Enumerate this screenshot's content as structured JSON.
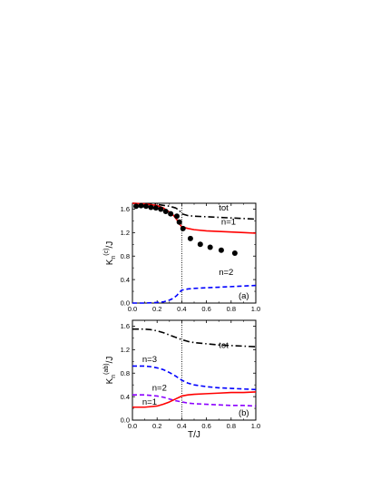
{
  "colors": {
    "tot": "#000000",
    "n1": "#ff0000",
    "n2a": "#0000ff",
    "n3": "#0000ff",
    "n2b": "#8b00ff",
    "dots": "#000000",
    "vline": "#000000"
  },
  "chart_data": [
    {
      "panel": "(a)",
      "type": "line",
      "xlabel": "",
      "ylabel": {
        "main": "K",
        "sub": "n",
        "sup": "(c)",
        "tail": "/J"
      },
      "xlim": [
        0.0,
        1.0
      ],
      "ylim": [
        0.0,
        1.7
      ],
      "xticks": [
        "0.0",
        "0.2",
        "0.4",
        "0.6",
        "0.8",
        "1.0"
      ],
      "yticks": [
        "0.0",
        "0.4",
        "0.8",
        "1.2",
        "1.6"
      ],
      "vline_x": 0.4,
      "series": [
        {
          "name": "tot",
          "style": "dashdot",
          "color_key": "tot",
          "x": [
            0.0,
            0.1,
            0.2,
            0.3,
            0.35,
            0.38,
            0.4,
            0.45,
            0.5,
            0.6,
            0.7,
            0.8,
            0.9,
            1.0
          ],
          "y": [
            1.7,
            1.69,
            1.68,
            1.65,
            1.62,
            1.58,
            1.52,
            1.49,
            1.48,
            1.47,
            1.46,
            1.45,
            1.44,
            1.43
          ]
        },
        {
          "name": "n=1",
          "style": "solid",
          "color_key": "n1",
          "x": [
            0.0,
            0.1,
            0.2,
            0.25,
            0.3,
            0.33,
            0.36,
            0.38,
            0.4,
            0.45,
            0.5,
            0.6,
            0.7,
            0.8,
            0.9,
            1.0
          ],
          "y": [
            1.7,
            1.69,
            1.66,
            1.62,
            1.55,
            1.5,
            1.42,
            1.35,
            1.3,
            1.27,
            1.25,
            1.23,
            1.22,
            1.21,
            1.2,
            1.19
          ]
        },
        {
          "name": "n=2",
          "style": "dash",
          "color_key": "n2a",
          "x": [
            0.0,
            0.1,
            0.2,
            0.25,
            0.3,
            0.33,
            0.36,
            0.38,
            0.4,
            0.45,
            0.5,
            0.6,
            0.7,
            0.8,
            0.9,
            1.0
          ],
          "y": [
            0.0,
            0.0,
            0.01,
            0.02,
            0.05,
            0.08,
            0.13,
            0.18,
            0.22,
            0.24,
            0.25,
            0.26,
            0.27,
            0.28,
            0.29,
            0.3
          ]
        },
        {
          "name": "",
          "style": "dots",
          "color_key": "dots",
          "x": [
            0.03,
            0.07,
            0.11,
            0.15,
            0.19,
            0.23,
            0.27,
            0.31,
            0.36,
            0.38,
            0.41,
            0.47,
            0.55,
            0.63,
            0.72,
            0.83
          ],
          "y": [
            1.65,
            1.66,
            1.65,
            1.63,
            1.62,
            1.6,
            1.56,
            1.52,
            1.48,
            1.38,
            1.27,
            1.1,
            1.0,
            0.95,
            0.9,
            0.85
          ]
        }
      ],
      "annotations": [
        {
          "text": "tot",
          "x": 0.7,
          "y": 1.58
        },
        {
          "text": "n=1",
          "x": 0.72,
          "y": 1.34
        },
        {
          "text": "n=2",
          "x": 0.7,
          "y": 0.48
        },
        {
          "text": "(a)",
          "x": 0.86,
          "y": 0.08
        }
      ]
    },
    {
      "panel": "(b)",
      "type": "line",
      "xlabel": "T/J",
      "ylabel": {
        "main": "K",
        "sub": "n",
        "sup": "(ab)",
        "tail": "/J"
      },
      "xlim": [
        0.0,
        1.0
      ],
      "ylim": [
        0.0,
        1.7
      ],
      "xticks": [
        "0.0",
        "0.2",
        "0.4",
        "0.6",
        "0.8",
        "1.0"
      ],
      "yticks": [
        "0.0",
        "0.4",
        "0.8",
        "1.2",
        "1.6"
      ],
      "vline_x": 0.4,
      "series": [
        {
          "name": "tot",
          "style": "dashdot",
          "color_key": "tot",
          "x": [
            0.0,
            0.1,
            0.15,
            0.2,
            0.25,
            0.3,
            0.35,
            0.4,
            0.45,
            0.5,
            0.6,
            0.7,
            0.8,
            0.9,
            1.0
          ],
          "y": [
            1.55,
            1.55,
            1.54,
            1.52,
            1.49,
            1.45,
            1.41,
            1.37,
            1.34,
            1.32,
            1.3,
            1.28,
            1.27,
            1.26,
            1.25
          ]
        },
        {
          "name": "n=3",
          "style": "dash",
          "color_key": "n3",
          "x": [
            0.0,
            0.1,
            0.15,
            0.2,
            0.25,
            0.3,
            0.35,
            0.4,
            0.45,
            0.5,
            0.6,
            0.7,
            0.8,
            0.9,
            1.0
          ],
          "y": [
            0.92,
            0.92,
            0.91,
            0.89,
            0.86,
            0.81,
            0.75,
            0.68,
            0.63,
            0.6,
            0.57,
            0.55,
            0.54,
            0.53,
            0.52
          ]
        },
        {
          "name": "n=2",
          "style": "dash",
          "color_key": "n2b",
          "x": [
            0.0,
            0.1,
            0.15,
            0.2,
            0.25,
            0.3,
            0.35,
            0.4,
            0.45,
            0.5,
            0.6,
            0.7,
            0.8,
            0.9,
            1.0
          ],
          "y": [
            0.43,
            0.43,
            0.42,
            0.41,
            0.39,
            0.36,
            0.33,
            0.31,
            0.29,
            0.28,
            0.27,
            0.26,
            0.25,
            0.25,
            0.24
          ]
        },
        {
          "name": "n=1",
          "style": "solid",
          "color_key": "n1",
          "x": [
            0.0,
            0.1,
            0.15,
            0.2,
            0.25,
            0.3,
            0.35,
            0.4,
            0.45,
            0.5,
            0.6,
            0.7,
            0.8,
            0.9,
            1.0
          ],
          "y": [
            0.22,
            0.22,
            0.23,
            0.24,
            0.27,
            0.31,
            0.36,
            0.41,
            0.43,
            0.44,
            0.45,
            0.46,
            0.47,
            0.47,
            0.48
          ]
        }
      ],
      "annotations": [
        {
          "text": "tot",
          "x": 0.7,
          "y": 1.23
        },
        {
          "text": "n=3",
          "x": 0.08,
          "y": 0.99
        },
        {
          "text": "n=2",
          "x": 0.16,
          "y": 0.5
        },
        {
          "text": "n=1",
          "x": 0.08,
          "y": 0.26
        },
        {
          "text": "(b)",
          "x": 0.86,
          "y": 0.08
        }
      ]
    }
  ]
}
